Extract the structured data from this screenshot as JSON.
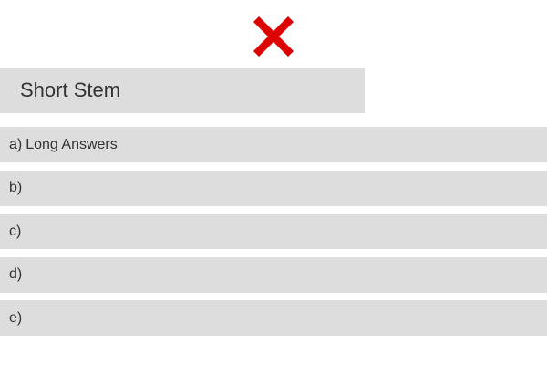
{
  "icons": {
    "status": "cross-icon",
    "status_color": "#dd0000"
  },
  "question": {
    "stem": "Short Stem"
  },
  "answers": [
    {
      "letter": "a)",
      "text": "Long Answers"
    },
    {
      "letter": "b)",
      "text": ""
    },
    {
      "letter": "c)",
      "text": ""
    },
    {
      "letter": "d)",
      "text": ""
    },
    {
      "letter": "e)",
      "text": ""
    }
  ],
  "colors": {
    "option_background": "#dddddd",
    "text": "#333333"
  }
}
